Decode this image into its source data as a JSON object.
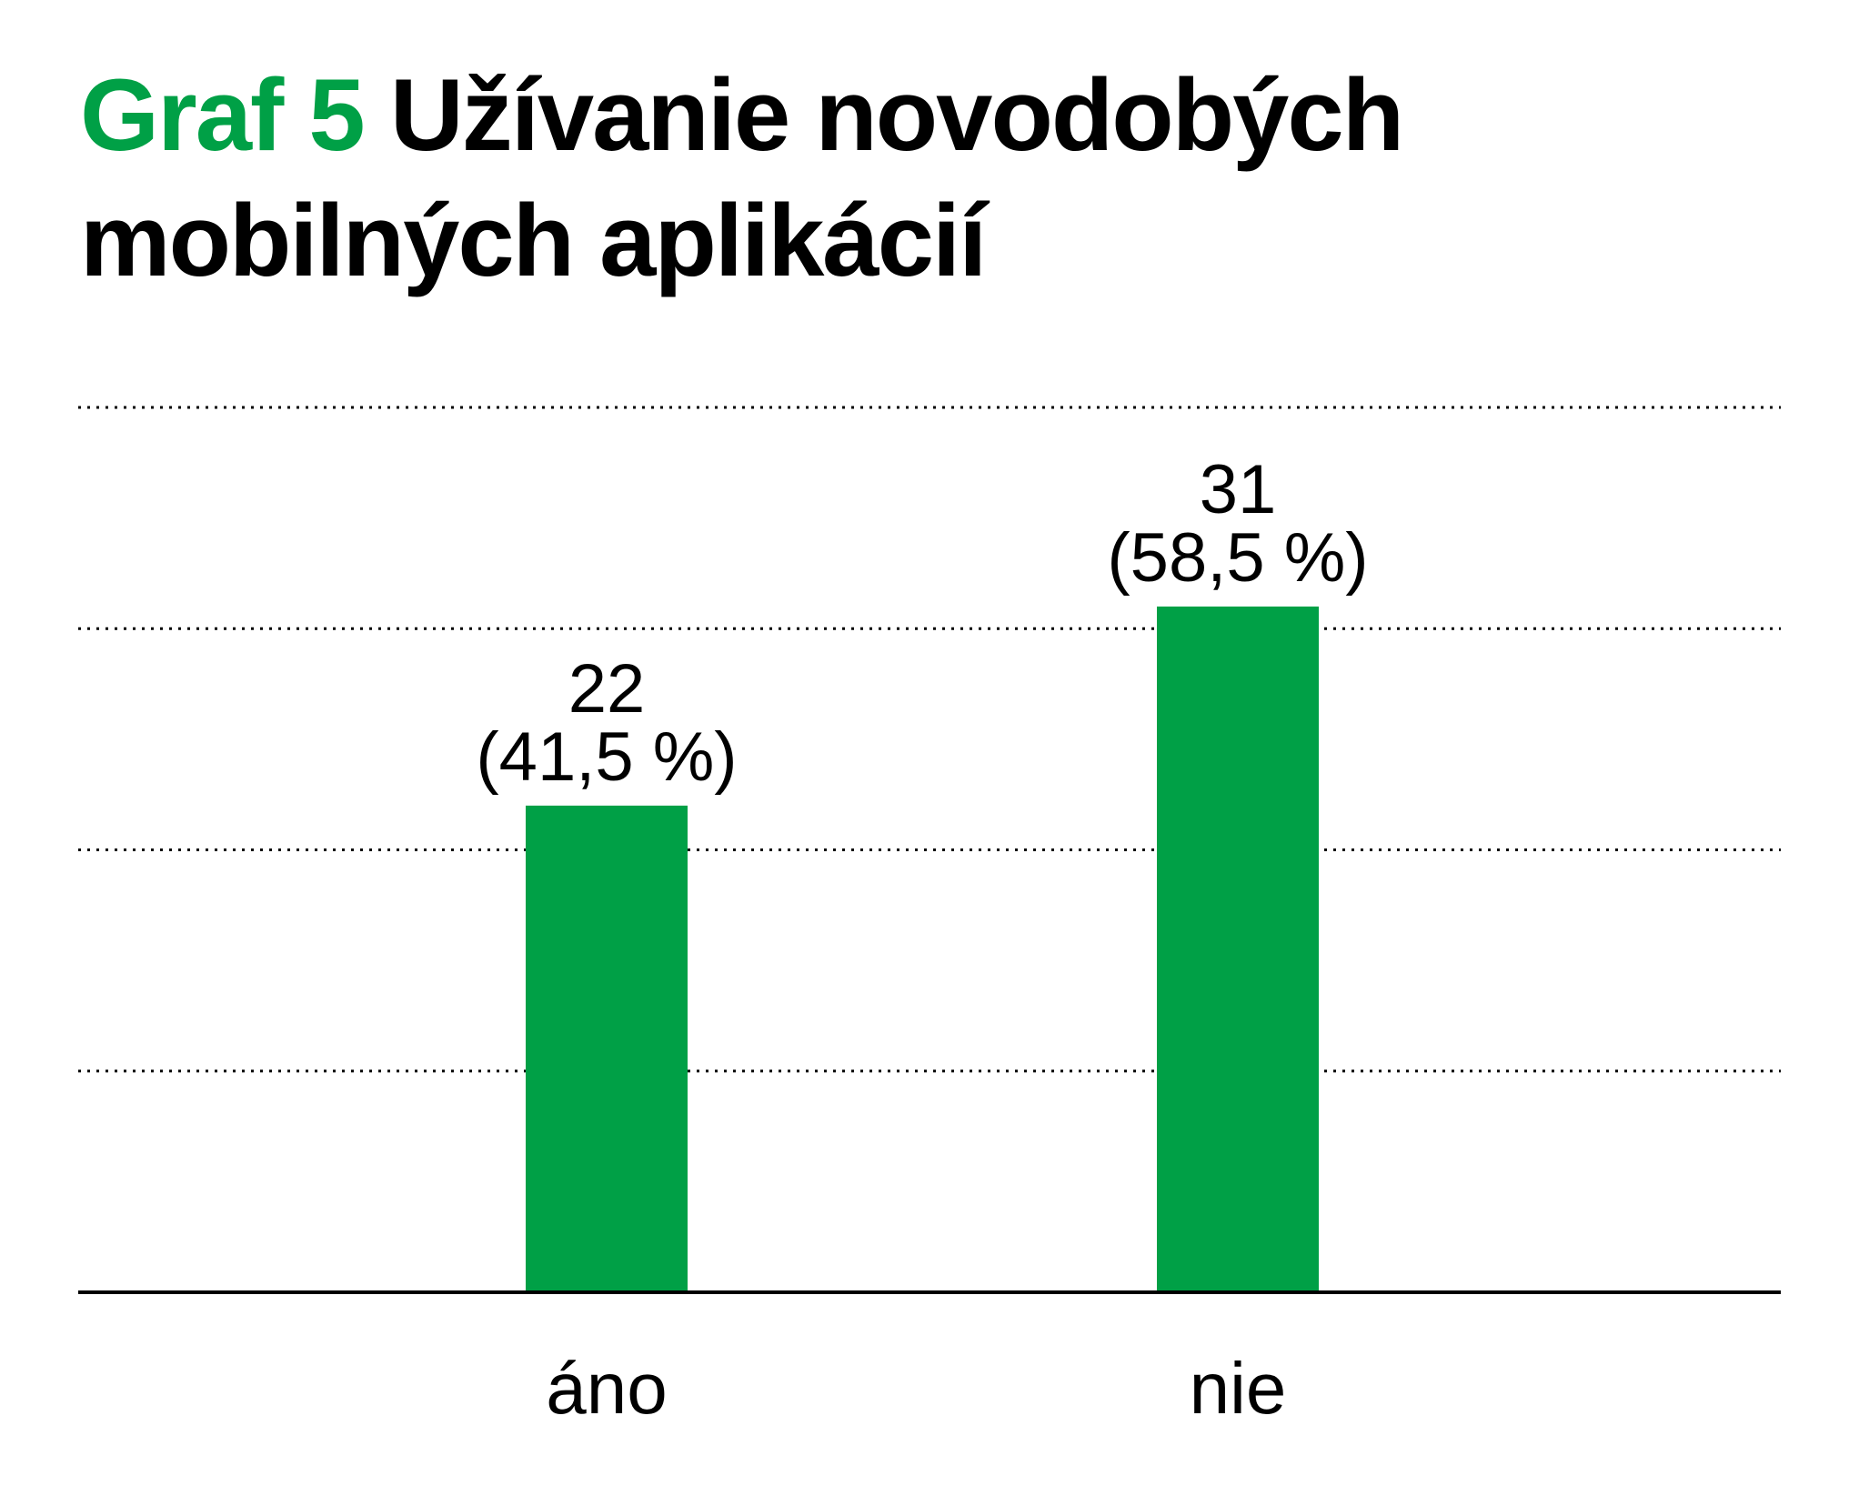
{
  "chart_data": {
    "type": "bar",
    "title_prefix": "Graf 5",
    "title": "Užívanie novodobých mobilných aplikácií",
    "categories": [
      "áno",
      "nie"
    ],
    "values": [
      22,
      31
    ],
    "percent_labels": [
      "(41,5 %)",
      "(58,5 %)"
    ],
    "ylim": [
      0,
      40
    ],
    "grid": true,
    "gridlines_at": [
      10,
      20,
      30,
      40
    ],
    "color": "#00a046"
  }
}
